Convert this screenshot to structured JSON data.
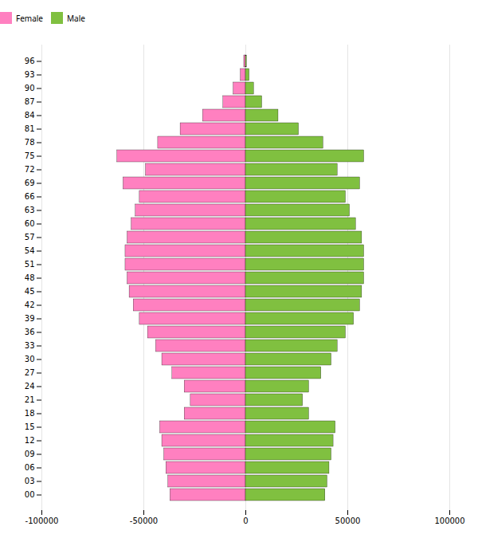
{
  "chart_data": {
    "type": "bar",
    "orientation": "horizontal",
    "categories": [
      "00",
      "03",
      "06",
      "09",
      "12",
      "15",
      "18",
      "21",
      "24",
      "27",
      "30",
      "33",
      "36",
      "39",
      "42",
      "45",
      "48",
      "51",
      "54",
      "57",
      "60",
      "63",
      "66",
      "69",
      "72",
      "75",
      "78",
      "81",
      "84",
      "87",
      "90",
      "93",
      "96"
    ],
    "series": [
      {
        "name": "Female",
        "color": "#ff80c0",
        "values": [
          -37000,
          -38000,
          -39000,
          -40000,
          -41000,
          -42000,
          -30000,
          -27000,
          -30000,
          -36000,
          -41000,
          -44000,
          -48000,
          -52000,
          -55000,
          -57000,
          -58000,
          -59000,
          -59000,
          -58000,
          -56000,
          -54000,
          -52000,
          -60000,
          -49000,
          -63000,
          -43000,
          -32000,
          -21000,
          -11000,
          -6000,
          -2500,
          -800
        ]
      },
      {
        "name": "Male",
        "color": "#80c040",
        "values": [
          39000,
          40000,
          41000,
          42000,
          43000,
          44000,
          31000,
          28000,
          31000,
          37000,
          42000,
          45000,
          49000,
          53000,
          56000,
          57000,
          58000,
          58000,
          58000,
          57000,
          54000,
          51000,
          49000,
          56000,
          45000,
          58000,
          38000,
          26000,
          16000,
          8000,
          4000,
          1800,
          500
        ]
      }
    ],
    "xlim": [
      -100000,
      100000
    ],
    "xticks": [
      -100000,
      -50000,
      0,
      50000,
      100000
    ],
    "grid": true,
    "legend": "top"
  }
}
